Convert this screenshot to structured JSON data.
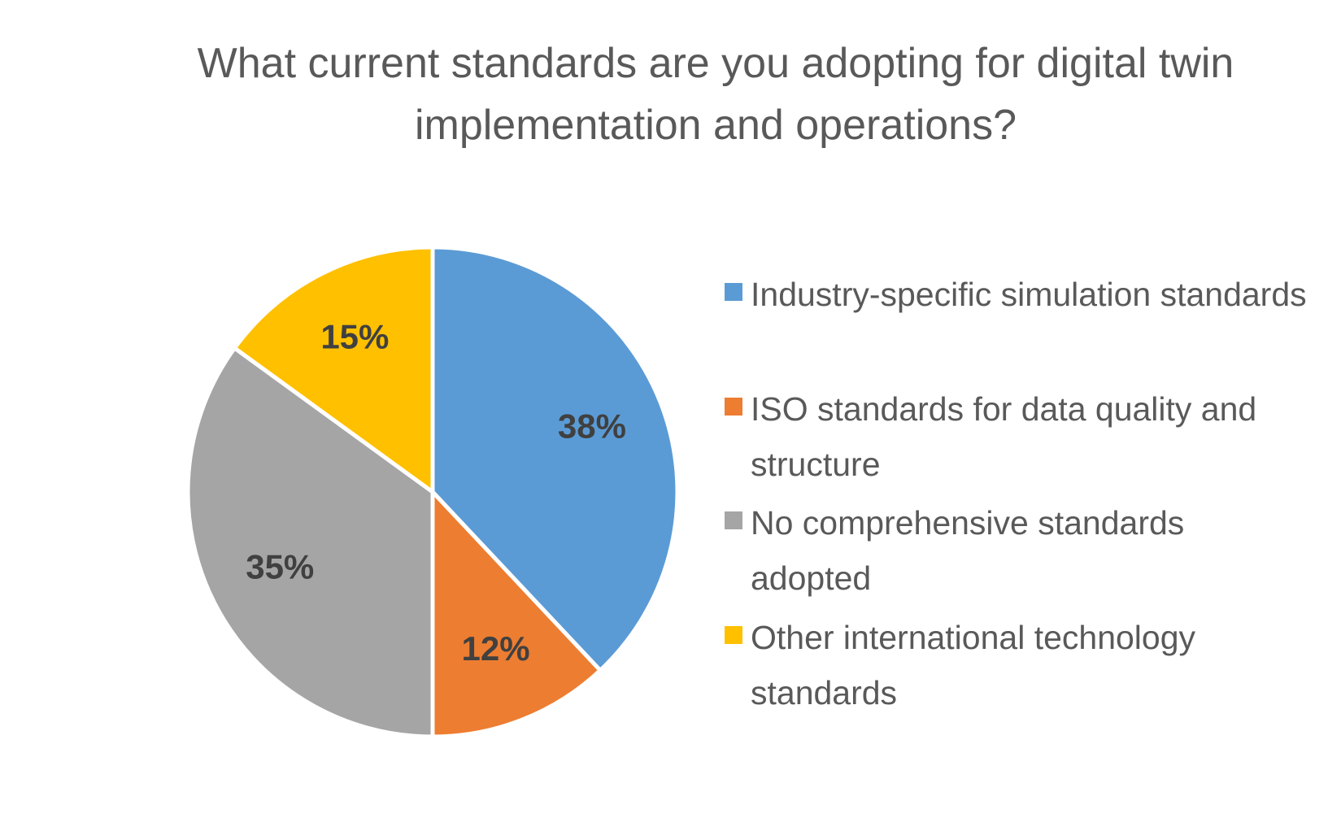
{
  "chart_data": {
    "type": "pie",
    "title": "What current standards are you adopting for digital twin implementation and operations?",
    "categories": [
      "Industry-specific simulation standards",
      "ISO standards for data quality and structure",
      "No comprehensive standards adopted",
      "Other international technology standards"
    ],
    "values": [
      38,
      12,
      35,
      15
    ],
    "value_labels": [
      "38%",
      "12%",
      "35%",
      "15%"
    ],
    "colors": [
      "#5b9bd5",
      "#ed7d31",
      "#a5a5a5",
      "#ffc000"
    ],
    "legend": "right"
  }
}
